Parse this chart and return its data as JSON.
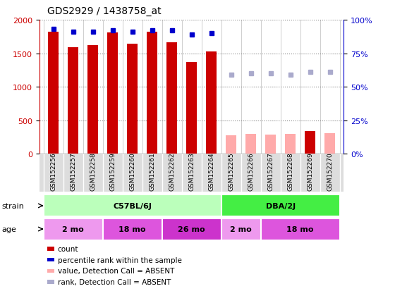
{
  "title": "GDS2929 / 1438758_at",
  "samples": [
    "GSM152256",
    "GSM152257",
    "GSM152258",
    "GSM152259",
    "GSM152260",
    "GSM152261",
    "GSM152262",
    "GSM152263",
    "GSM152264",
    "GSM152265",
    "GSM152266",
    "GSM152267",
    "GSM152268",
    "GSM152269",
    "GSM152270"
  ],
  "count_values": [
    1820,
    1590,
    1620,
    1810,
    1640,
    1820,
    1660,
    1370,
    1530,
    null,
    null,
    null,
    null,
    340,
    null
  ],
  "rank_values": [
    93,
    91,
    91,
    92,
    91,
    92,
    92,
    89,
    90,
    null,
    null,
    null,
    null,
    null,
    null
  ],
  "absent_count_values": [
    null,
    null,
    null,
    null,
    null,
    null,
    null,
    null,
    null,
    280,
    300,
    290,
    300,
    null,
    305
  ],
  "absent_rank_values": [
    null,
    null,
    null,
    null,
    null,
    null,
    null,
    null,
    null,
    59,
    60,
    60,
    59,
    61,
    61
  ],
  "count_color": "#cc0000",
  "rank_color": "#0000cc",
  "absent_count_color": "#ffaaaa",
  "absent_rank_color": "#aaaacc",
  "ylim_left": [
    0,
    2000
  ],
  "ylim_right": [
    0,
    100
  ],
  "yticks_left": [
    0,
    500,
    1000,
    1500,
    2000
  ],
  "yticks_right": [
    0,
    25,
    50,
    75,
    100
  ],
  "yticklabels_right": [
    "0%",
    "25%",
    "50%",
    "75%",
    "100%"
  ],
  "strain_groups": [
    {
      "label": "C57BL/6J",
      "start": 0,
      "end": 8,
      "color": "#bbffbb"
    },
    {
      "label": "DBA/2J",
      "start": 9,
      "end": 14,
      "color": "#44ee44"
    }
  ],
  "age_groups": [
    {
      "label": "2 mo",
      "start": 0,
      "end": 2,
      "color": "#ee99ee"
    },
    {
      "label": "18 mo",
      "start": 3,
      "end": 5,
      "color": "#dd55dd"
    },
    {
      "label": "26 mo",
      "start": 6,
      "end": 8,
      "color": "#cc33cc"
    },
    {
      "label": "2 mo",
      "start": 9,
      "end": 10,
      "color": "#ee99ee"
    },
    {
      "label": "18 mo",
      "start": 11,
      "end": 14,
      "color": "#dd55dd"
    }
  ],
  "legend_items": [
    {
      "label": "count",
      "color": "#cc0000"
    },
    {
      "label": "percentile rank within the sample",
      "color": "#0000cc"
    },
    {
      "label": "value, Detection Call = ABSENT",
      "color": "#ffaaaa"
    },
    {
      "label": "rank, Detection Call = ABSENT",
      "color": "#aaaacc"
    }
  ],
  "bg_color": "#ffffff",
  "plot_bg_color": "#ffffff",
  "grid_color": "#888888",
  "title_color": "#000000"
}
